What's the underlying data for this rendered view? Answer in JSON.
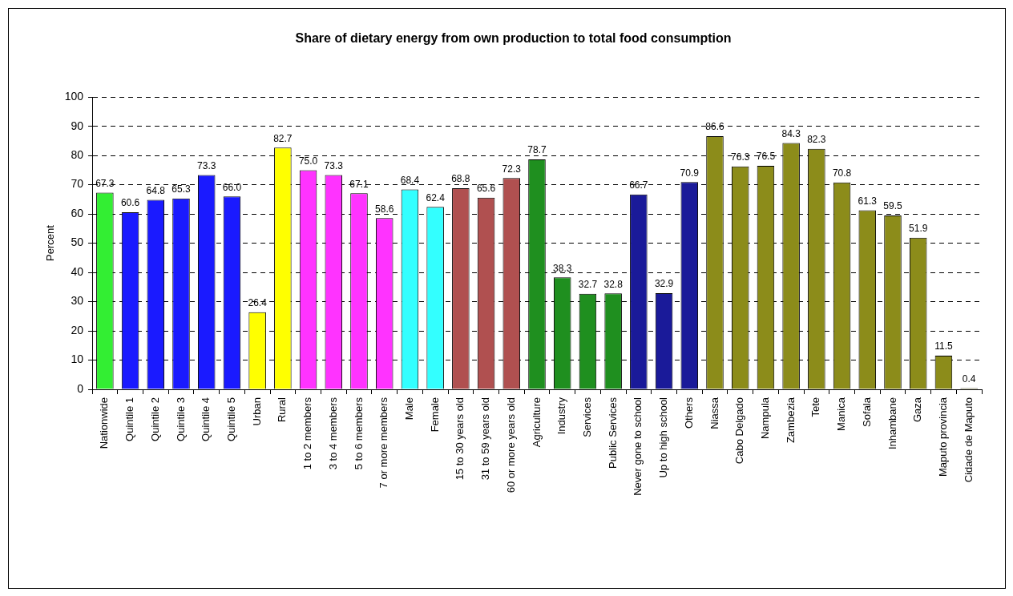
{
  "chart_data": {
    "type": "bar",
    "title": "Share of dietary energy from own production to total food consumption",
    "ylabel": "Percent",
    "categories": [
      "Nationwide",
      "Quintile 1",
      "Quintile 2",
      "Quintile 3",
      "Quintile 4",
      "Quintile 5",
      "Urban",
      "Rural",
      "1 to 2 members",
      "3 to 4 members",
      "5 to 6 members",
      "7 or more members",
      "Male",
      "Female",
      "15 to 30 years old",
      "31 to 59 years old",
      "60 or more years old",
      "Agriculture",
      "Industry",
      "Services",
      "Public Services",
      "Never gone to school",
      "Up to high school",
      "Others",
      "Niassa",
      "Cabo Delgado",
      "Nampula",
      "Zambezia",
      "Tete",
      "Manica",
      "Sofala",
      "Inhambane",
      "Gaza",
      "Maputo provincia",
      "Cidade de Maputo"
    ],
    "values": [
      67.3,
      60.6,
      64.8,
      65.3,
      73.3,
      66.0,
      26.4,
      82.7,
      75.0,
      73.3,
      67.1,
      58.6,
      68.4,
      62.4,
      68.8,
      65.6,
      72.3,
      78.7,
      38.3,
      32.7,
      32.8,
      66.7,
      32.9,
      70.9,
      86.6,
      76.3,
      76.5,
      84.3,
      82.3,
      70.8,
      61.3,
      59.5,
      51.9,
      11.5,
      0.4
    ],
    "value_labels": [
      "67.3",
      "60.6",
      "64.8",
      "65.3",
      "73.3",
      "66.0",
      "26.4",
      "82.7",
      "75.0",
      "73.3",
      "67.1",
      "58.6",
      "68.4",
      "62.4",
      "68.8",
      "65.6",
      "72.3",
      "78.7",
      "38.3",
      "32.7",
      "32.8",
      "66.7",
      "32.9",
      "70.9",
      "86.6",
      "76.3",
      "76.5",
      "84.3",
      "82.3",
      "70.8",
      "61.3",
      "59.5",
      "51.9",
      "11.5",
      "0.4"
    ],
    "colors": [
      "#33ee33",
      "#1a1aff",
      "#1a1aff",
      "#1a1aff",
      "#1a1aff",
      "#1a1aff",
      "#ffff00",
      "#ffff00",
      "#ff33ff",
      "#ff33ff",
      "#ff33ff",
      "#ff33ff",
      "#33ffff",
      "#33ffff",
      "#b05050",
      "#b05050",
      "#b05050",
      "#1f8f1f",
      "#1f8f1f",
      "#1f8f1f",
      "#1f8f1f",
      "#1a1a99",
      "#1a1a99",
      "#1a1a99",
      "#8c8c1a",
      "#8c8c1a",
      "#8c8c1a",
      "#8c8c1a",
      "#8c8c1a",
      "#8c8c1a",
      "#8c8c1a",
      "#8c8c1a",
      "#8c8c1a",
      "#8c8c1a",
      "#8c8c1a"
    ],
    "ylim": [
      0,
      100
    ],
    "yticks": [
      0,
      10,
      20,
      30,
      40,
      50,
      60,
      70,
      80,
      90,
      100
    ],
    "grid": "y"
  }
}
